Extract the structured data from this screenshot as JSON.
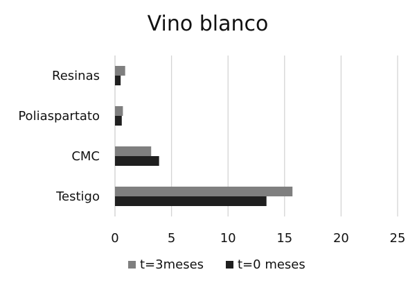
{
  "chart_data": {
    "type": "bar",
    "orientation": "horizontal",
    "title": "Vino blanco",
    "categories": [
      "Resinas",
      "Poliaspartato",
      "CMC",
      "Testigo"
    ],
    "series": [
      {
        "name": "t=3meses",
        "values": [
          0.9,
          0.7,
          3.2,
          15.7
        ],
        "color": "#7f7f7f"
      },
      {
        "name": "t=0 meses",
        "values": [
          0.5,
          0.6,
          3.9,
          13.4
        ],
        "color": "#1f1f1f"
      }
    ],
    "xlim": [
      0,
      25
    ],
    "xticks": [
      "0",
      "5",
      "10",
      "15",
      "20",
      "25"
    ],
    "grid": "vertical",
    "legend_position": "bottom"
  }
}
